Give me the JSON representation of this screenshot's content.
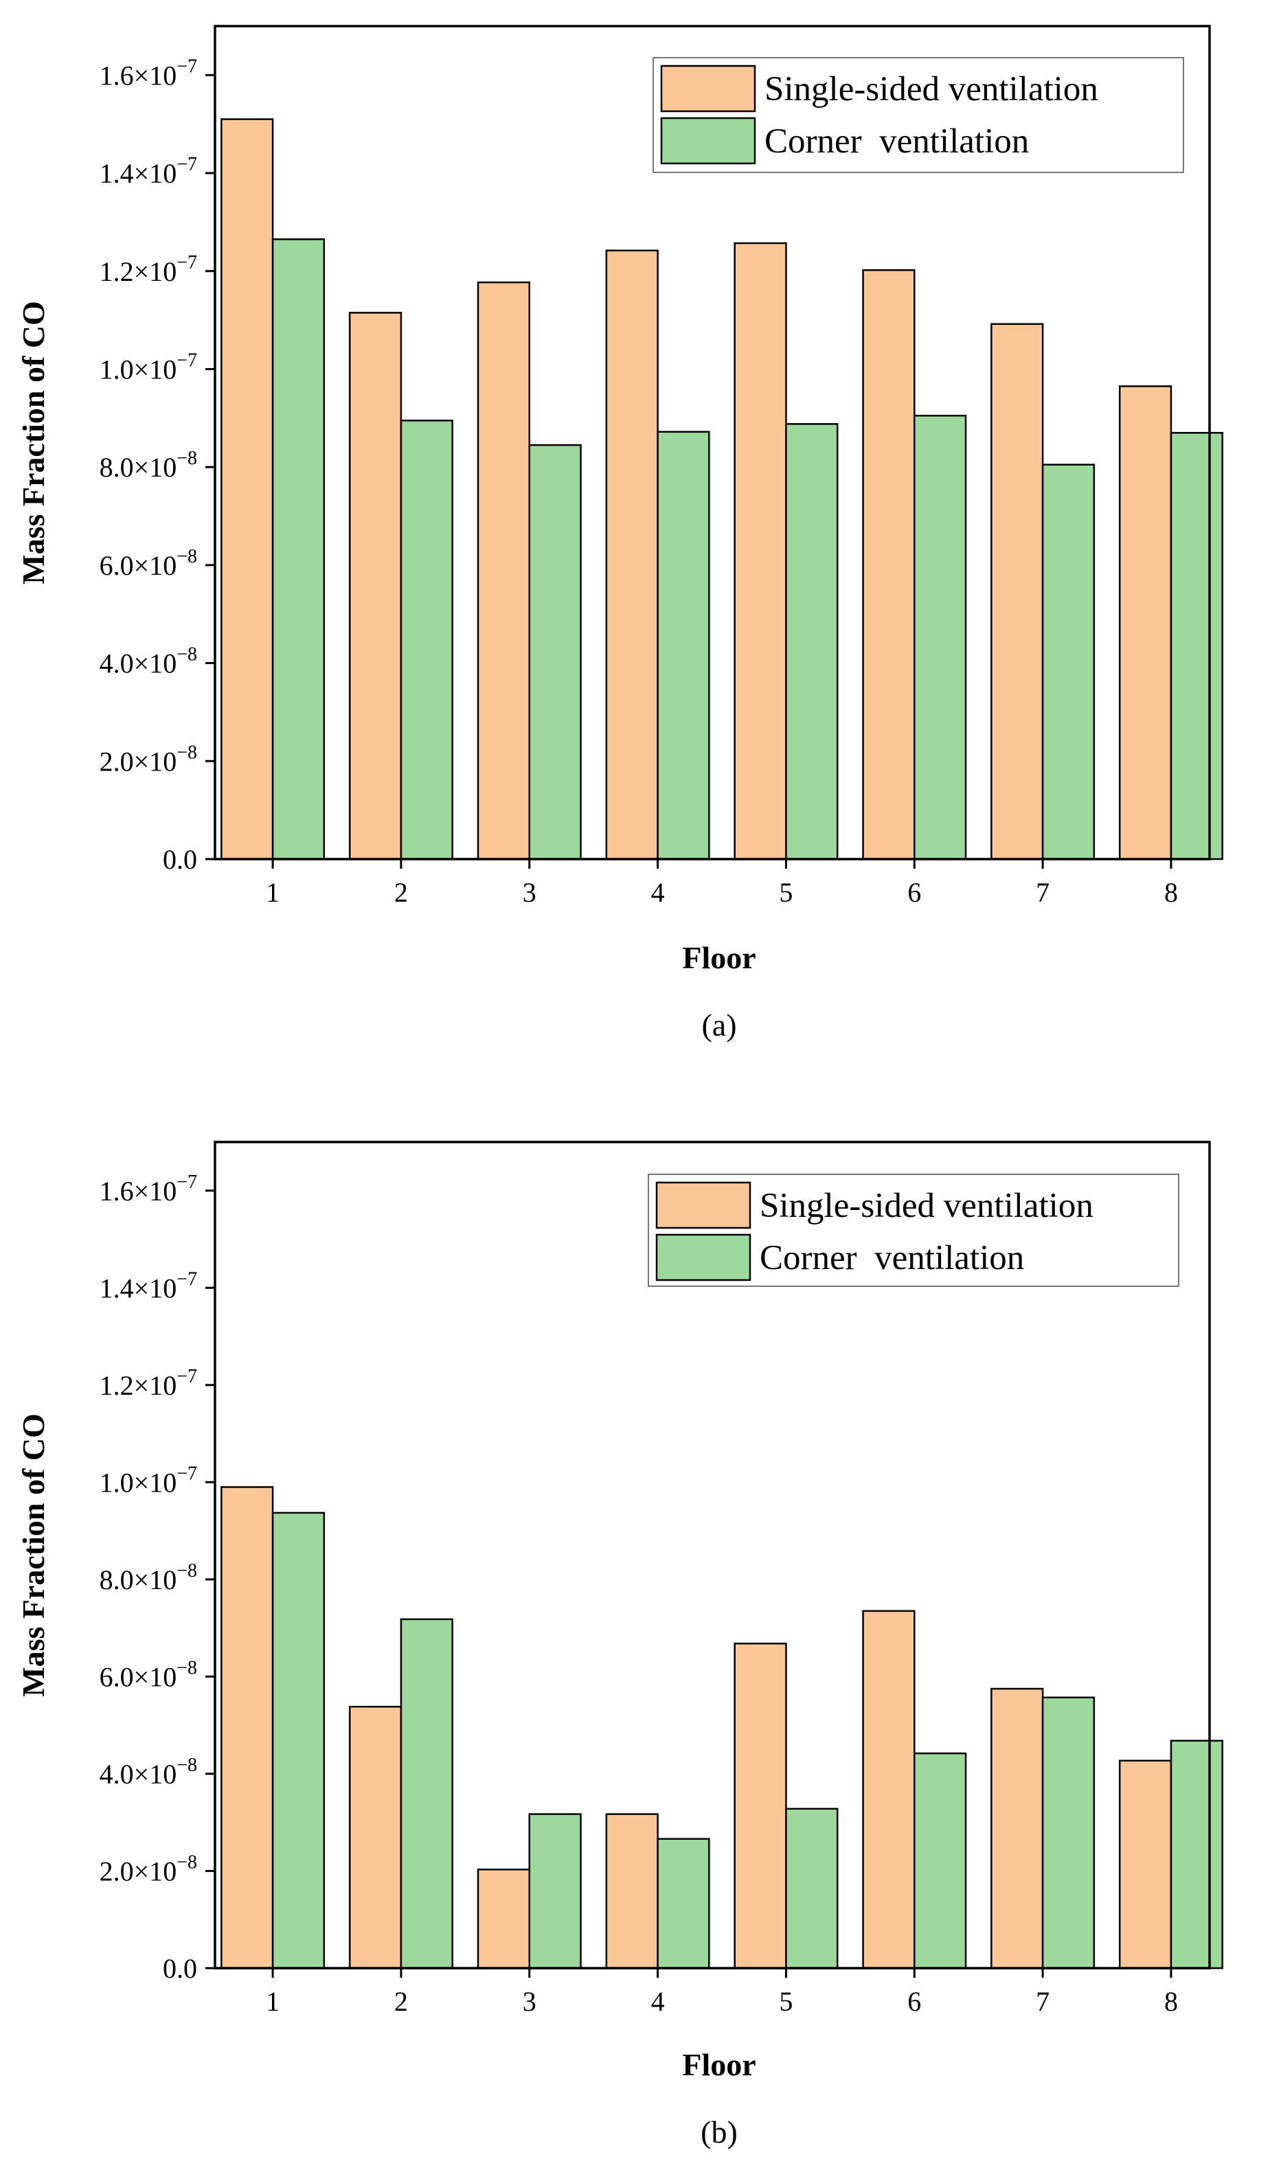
{
  "chart_data": [
    {
      "panel": "(a)",
      "type": "bar",
      "caption": "(a)",
      "xlabel": "Floor",
      "ylabel": "Mass Fraction of CO",
      "categories": [
        "1",
        "2",
        "3",
        "4",
        "5",
        "6",
        "7",
        "8"
      ],
      "ylim": [
        0,
        1.7e-07
      ],
      "yticks": [
        {
          "mantissa": "0.0",
          "exponent": ""
        },
        {
          "mantissa": "2.0×10",
          "exponent": "−8"
        },
        {
          "mantissa": "4.0×10",
          "exponent": "−8"
        },
        {
          "mantissa": "6.0×10",
          "exponent": "−8"
        },
        {
          "mantissa": "8.0×10",
          "exponent": "−8"
        },
        {
          "mantissa": "1.0×10",
          "exponent": "−7"
        },
        {
          "mantissa": "1.2×10",
          "exponent": "−7"
        },
        {
          "mantissa": "1.4×10",
          "exponent": "−7"
        },
        {
          "mantissa": "1.6×10",
          "exponent": "−7"
        }
      ],
      "ytick_values": [
        0,
        2e-08,
        4e-08,
        6e-08,
        8e-08,
        1e-07,
        1.2e-07,
        1.4e-07,
        1.6e-07
      ],
      "legend_position": "top-right",
      "series": [
        {
          "name": "Single-sided ventilation",
          "color": "#fcc797",
          "values": [
            1.51e-07,
            1.115e-07,
            1.177e-07,
            1.242e-07,
            1.257e-07,
            1.202e-07,
            1.092e-07,
            9.65e-08
          ]
        },
        {
          "name": "Corner  ventilation",
          "color": "#9dd89c",
          "values": [
            1.265e-07,
            8.95e-08,
            8.45e-08,
            8.72e-08,
            8.88e-08,
            9.05e-08,
            8.05e-08,
            8.7e-08
          ]
        }
      ]
    },
    {
      "panel": "(b)",
      "type": "bar",
      "caption": "(b)",
      "xlabel": "Floor",
      "ylabel": "Mass Fraction of CO",
      "categories": [
        "1",
        "2",
        "3",
        "4",
        "5",
        "6",
        "7",
        "8"
      ],
      "ylim": [
        0,
        1.7e-07
      ],
      "yticks": [
        {
          "mantissa": "0.0",
          "exponent": ""
        },
        {
          "mantissa": "2.0×10",
          "exponent": "−8"
        },
        {
          "mantissa": "4.0×10",
          "exponent": "−8"
        },
        {
          "mantissa": "6.0×10",
          "exponent": "−8"
        },
        {
          "mantissa": "8.0×10",
          "exponent": "−8"
        },
        {
          "mantissa": "1.0×10",
          "exponent": "−7"
        },
        {
          "mantissa": "1.2×10",
          "exponent": "−7"
        },
        {
          "mantissa": "1.4×10",
          "exponent": "−7"
        },
        {
          "mantissa": "1.6×10",
          "exponent": "−7"
        }
      ],
      "ytick_values": [
        0,
        2e-08,
        4e-08,
        6e-08,
        8e-08,
        1e-07,
        1.2e-07,
        1.4e-07,
        1.6e-07
      ],
      "legend_position": "top-right",
      "series": [
        {
          "name": "Single-sided ventilation",
          "color": "#fcc797",
          "values": [
            9.9e-08,
            5.38e-08,
            2.03e-08,
            3.17e-08,
            6.68e-08,
            7.35e-08,
            5.75e-08,
            4.27e-08
          ]
        },
        {
          "name": "Corner  ventilation",
          "color": "#9dd89c",
          "values": [
            9.37e-08,
            7.18e-08,
            3.17e-08,
            2.66e-08,
            3.28e-08,
            4.42e-08,
            5.57e-08,
            4.68e-08
          ]
        }
      ]
    }
  ]
}
